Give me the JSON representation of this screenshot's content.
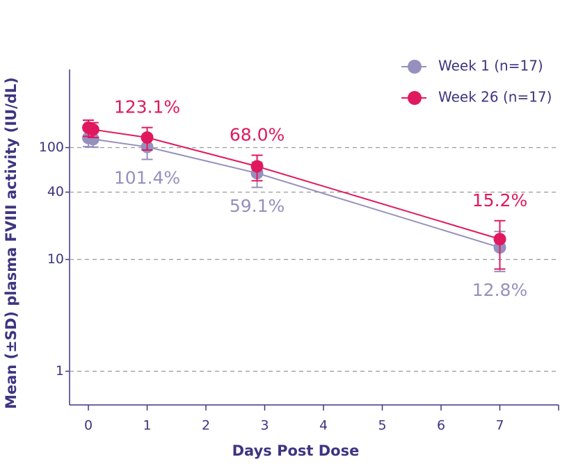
{
  "chart_data": {
    "type": "line",
    "x_label": "Days Post Dose",
    "y_label": "Mean (±SD) plasma FVIII activity (IU/dL)",
    "log_y": true,
    "grid": true,
    "legend": "top-right",
    "xlim": [
      -0.32,
      8
    ],
    "xticks": [
      0,
      1,
      2,
      3,
      4,
      5,
      6,
      7
    ],
    "ylim": [
      0.5,
      500
    ],
    "yticks": [
      1,
      10,
      40,
      100
    ],
    "series": [
      {
        "name": "Week 1 (n=17)",
        "color": "#9590bd",
        "x": [
          0,
          0.08,
          1,
          2.87,
          7
        ],
        "values": [
          122,
          119,
          101.4,
          59.1,
          12.8
        ],
        "errors": [
          20,
          18,
          23,
          15,
          5
        ],
        "value_labels": [
          null,
          null,
          "101.4%",
          "59.1%",
          "12.8%"
        ]
      },
      {
        "name": "Week 26 (n=17)",
        "color": "#e0195e",
        "x": [
          0,
          0.08,
          1,
          2.87,
          7
        ],
        "values": [
          151,
          145,
          123.1,
          68.0,
          15.2
        ],
        "errors": [
          25,
          22,
          28,
          17.5,
          7
        ],
        "value_labels": [
          null,
          null,
          "123.1%",
          "68.0%",
          "15.2%"
        ]
      }
    ]
  }
}
